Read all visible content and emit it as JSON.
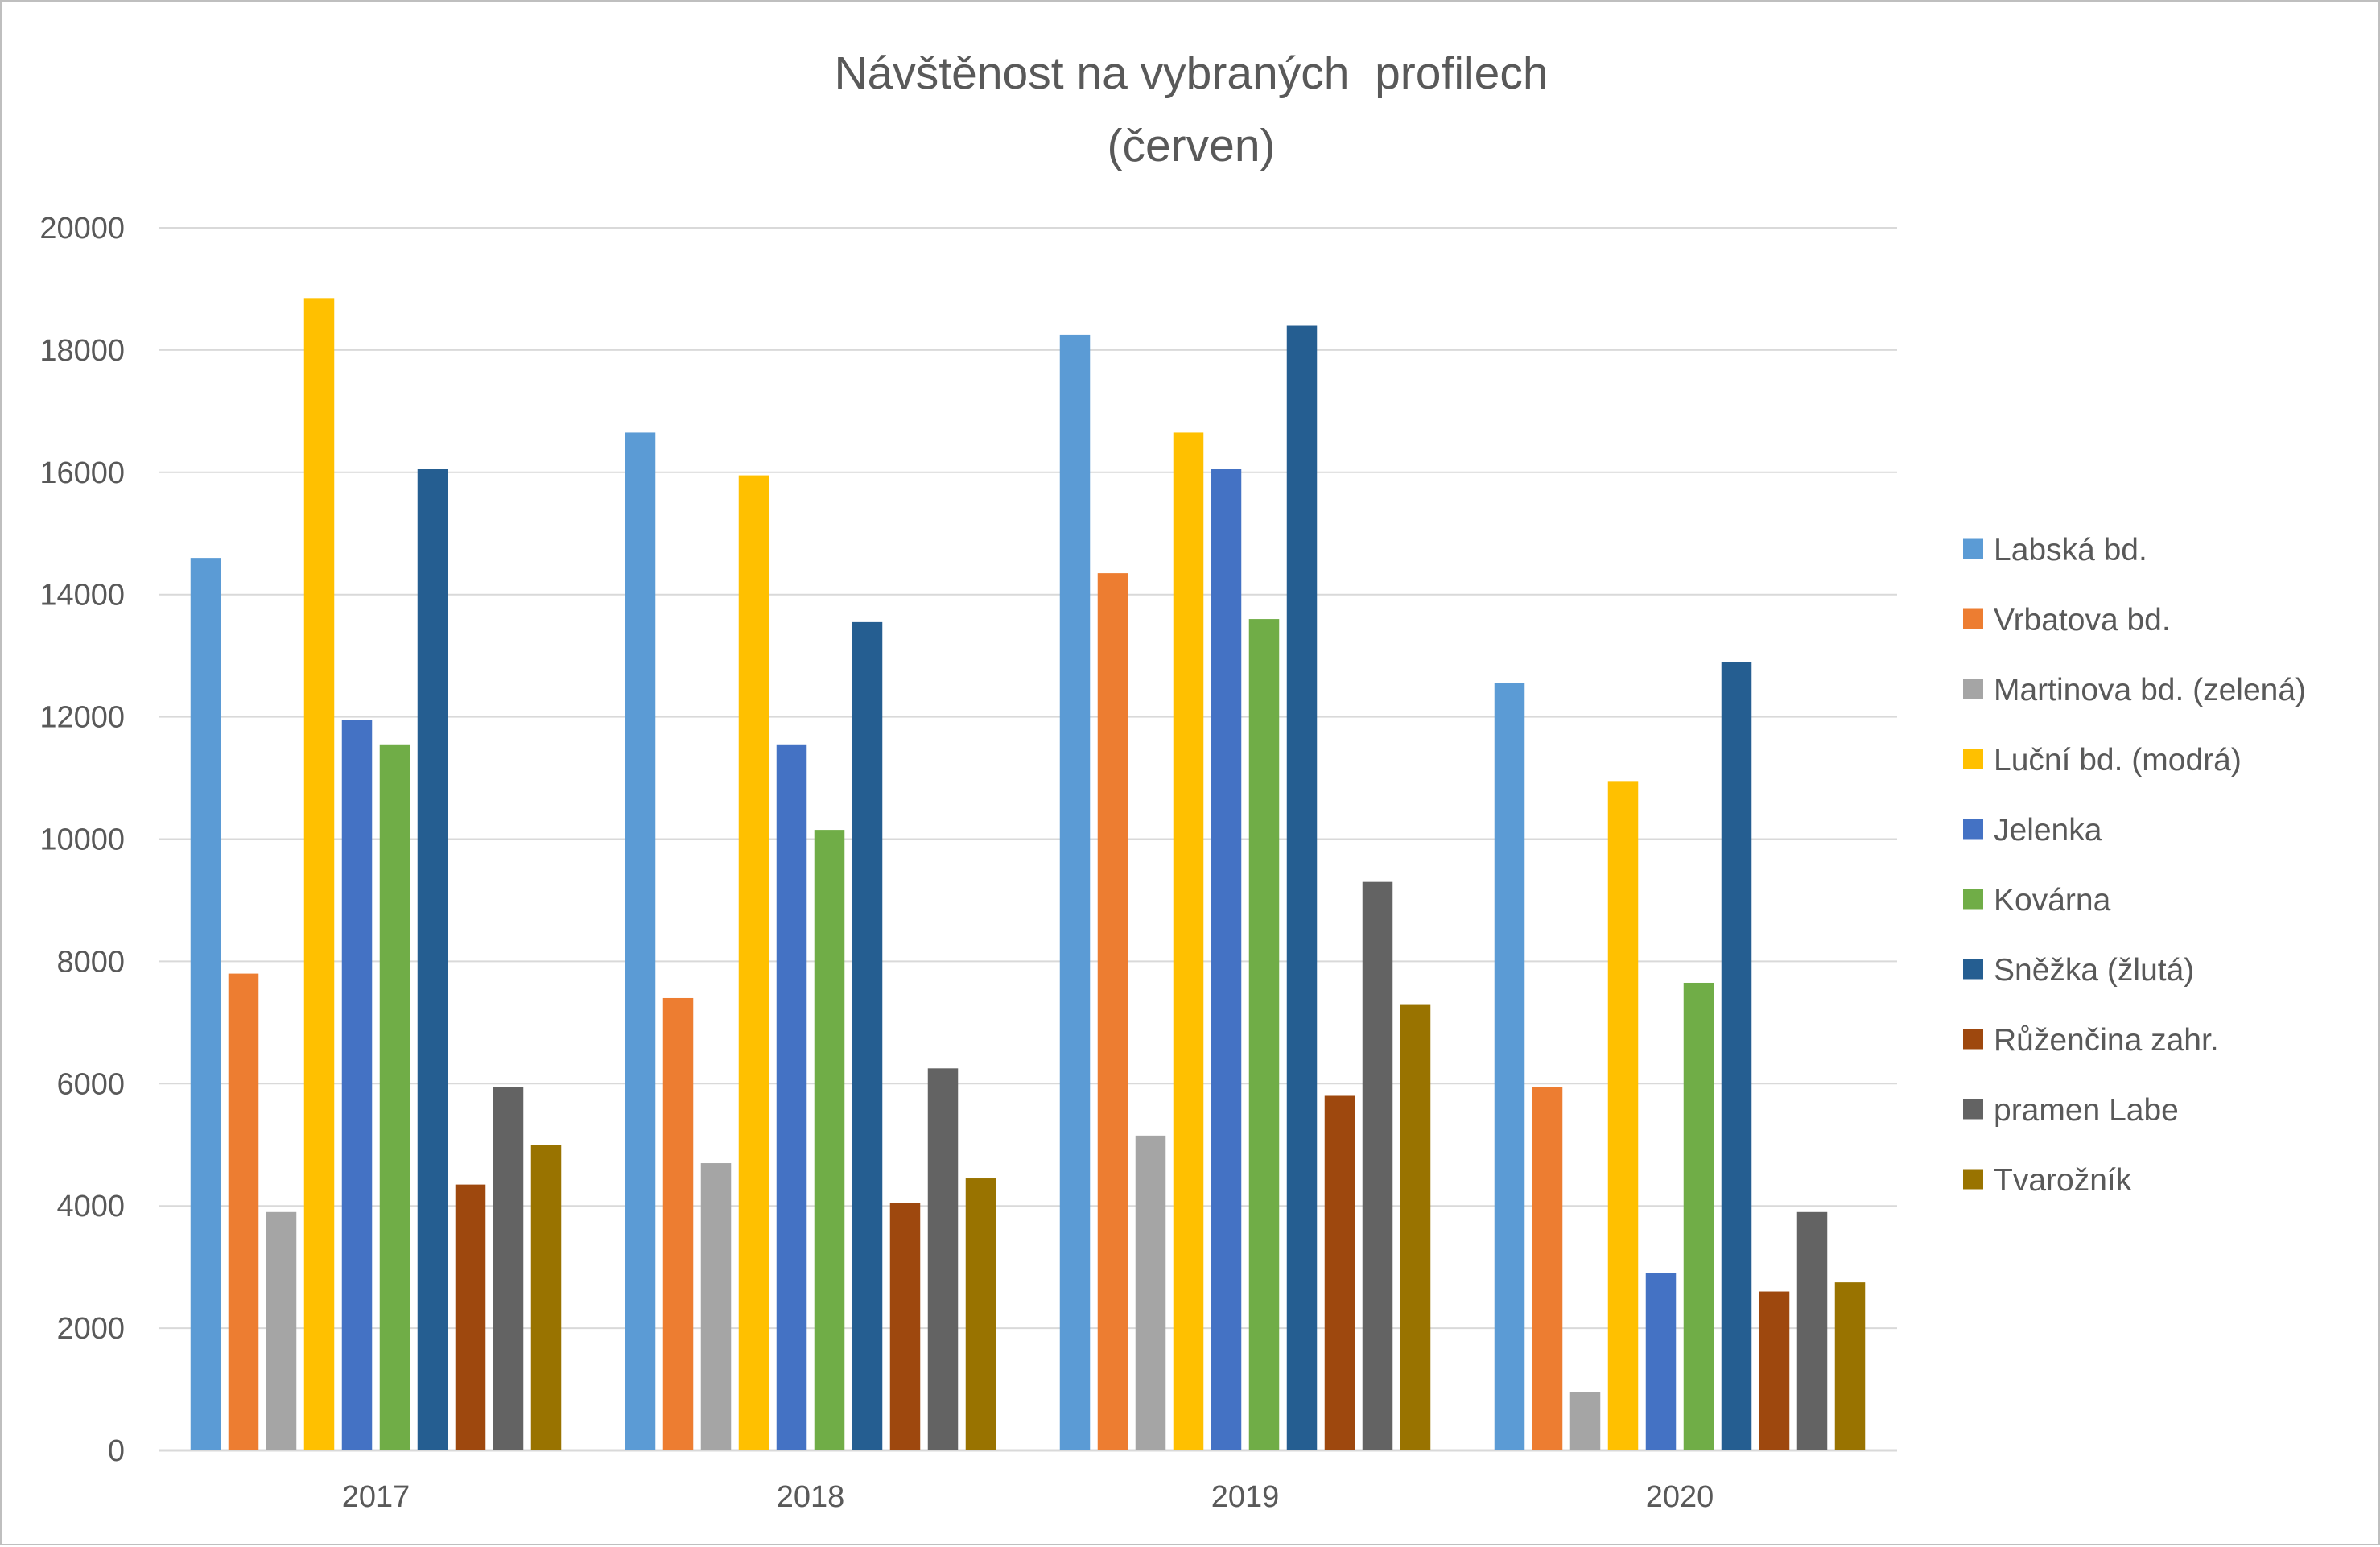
{
  "chart_data": {
    "type": "bar",
    "title": "Návštěnost na vybraných  profilech",
    "subtitle": "(červen)",
    "categories": [
      "2017",
      "2018",
      "2019",
      "2020"
    ],
    "ylim": [
      0,
      20000
    ],
    "yticks": [
      0,
      2000,
      4000,
      6000,
      8000,
      10000,
      12000,
      14000,
      16000,
      18000,
      20000
    ],
    "grid": true,
    "legend_position": "right",
    "series": [
      {
        "name": "Labská bd.",
        "color": "#5b9bd5",
        "values": [
          14600,
          16650,
          18250,
          12550
        ]
      },
      {
        "name": "Vrbatova bd.",
        "color": "#ed7d31",
        "values": [
          7800,
          7400,
          14350,
          5950
        ]
      },
      {
        "name": "Martinova bd. (zelená)",
        "color": "#a5a5a5",
        "values": [
          3900,
          4700,
          5150,
          950
        ]
      },
      {
        "name": "Luční bd. (modrá)",
        "color": "#ffc000",
        "values": [
          18850,
          15950,
          16650,
          10950
        ]
      },
      {
        "name": "Jelenka",
        "color": "#4472c4",
        "values": [
          11950,
          11550,
          16050,
          2900
        ]
      },
      {
        "name": "Kovárna",
        "color": "#70ad47",
        "values": [
          11550,
          10150,
          13600,
          7650
        ]
      },
      {
        "name": "Sněžka (žlutá)",
        "color": "#255e91",
        "values": [
          16050,
          13550,
          18400,
          12900
        ]
      },
      {
        "name": "Růženčina zahr.",
        "color": "#9e480e",
        "values": [
          4350,
          4050,
          5800,
          2600
        ]
      },
      {
        "name": "pramen Labe",
        "color": "#636363",
        "values": [
          5950,
          6250,
          9300,
          3900
        ]
      },
      {
        "name": "Tvarožník",
        "color": "#997300",
        "values": [
          5000,
          4450,
          7300,
          2750
        ]
      }
    ]
  }
}
